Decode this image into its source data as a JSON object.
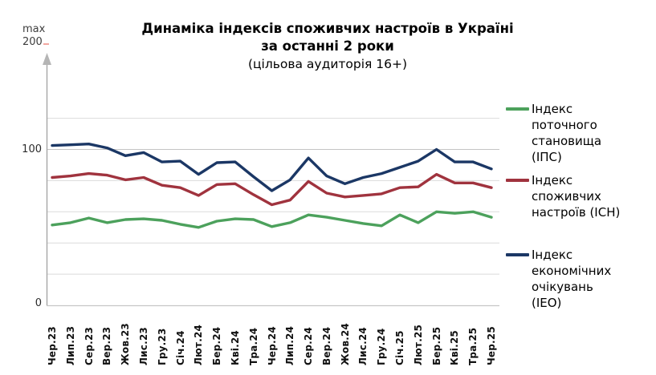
{
  "title": {
    "line1": "Динаміка індексів споживчих настроїв в Україні",
    "line2": "за останні 2 роки",
    "line3": "(цільова аудиторія 16+)"
  },
  "y_axis": {
    "max_label": "max",
    "max_value": "200",
    "ticks": {
      "v100": "100",
      "v0": "0"
    }
  },
  "legend": [
    {
      "id": "ips",
      "label": "Індекс поточного становища (ІПС)",
      "color": "#4ca15c"
    },
    {
      "id": "isn",
      "label": "Індекс споживчих настроїв (ІСН)",
      "color": "#a0333e"
    },
    {
      "id": "ieo",
      "label": "Індекс економічних очікувань (ІЕО)",
      "color": "#1b3765"
    }
  ],
  "chart_data": {
    "type": "line",
    "title": "Динаміка індексів споживчих настроїв в Україні за останні 2 роки (цільова аудиторія 16+)",
    "x": [
      "Чер.23",
      "Лип.23",
      "Сер.23",
      "Вер.23",
      "Жов.23",
      "Лис.23",
      "Гру.23",
      "Січ.24",
      "Лют.24",
      "Бер.24",
      "Кві.24",
      "Тра.24",
      "Чер.24",
      "Лип.24",
      "Сер.24",
      "Вер.24",
      "Жов.24",
      "Лис.24",
      "Гру.24",
      "Січ.25",
      "Лют.25",
      "Бер.25",
      "Кві.25",
      "Тра.25",
      "Чер.25"
    ],
    "series": [
      {
        "id": "ips",
        "name": "Індекс поточного становища (ІПС)",
        "color": "#4ca15c",
        "values": [
          51.5,
          53,
          56,
          53,
          55,
          55.5,
          54.5,
          52,
          50,
          54,
          55.5,
          55,
          50.5,
          53,
          58,
          56.5,
          54.5,
          52.5,
          51,
          58,
          53,
          60,
          59,
          60,
          56.5
        ]
      },
      {
        "id": "isn",
        "name": "Індекс споживчих настроїв (ІСН)",
        "color": "#a0333e",
        "values": [
          82,
          83,
          84.5,
          83.5,
          80.5,
          82,
          77,
          75.5,
          70.5,
          77.5,
          78,
          71,
          64.5,
          67.5,
          79.5,
          72,
          69.5,
          70.5,
          71.5,
          75.5,
          76,
          84,
          78.5,
          78.5,
          75.5
        ]
      },
      {
        "id": "ieo",
        "name": "Індекс економічних очікувань (ІЕО)",
        "color": "#1b3765",
        "values": [
          102.5,
          103,
          103.5,
          101,
          96,
          98,
          92,
          92.5,
          84,
          91.5,
          92,
          82.5,
          73.5,
          80.5,
          94.5,
          83,
          78,
          82,
          84.5,
          88.5,
          92.5,
          100,
          92,
          92,
          87.5
        ]
      }
    ],
    "ylim": [
      0,
      200
    ],
    "visible_gridlines": [
      20,
      40,
      60,
      80,
      100,
      120
    ],
    "shown_y_ticks": [
      0,
      100
    ],
    "grid": true,
    "legend_position": "right",
    "x_label_rotation": -90
  }
}
